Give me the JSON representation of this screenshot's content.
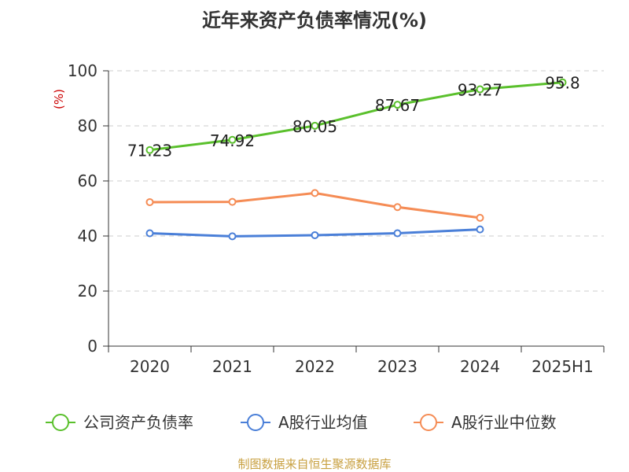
{
  "chart_data": {
    "type": "line",
    "title": "近年来资产负债率情况(%)",
    "ylabel": "(%)",
    "xlabel": "",
    "categories": [
      "2020",
      "2021",
      "2022",
      "2023",
      "2024",
      "2025H1"
    ],
    "ylim": [
      0,
      100
    ],
    "yticks": [
      0,
      20,
      40,
      60,
      80,
      100
    ],
    "grid": true,
    "legend_position": "bottom",
    "series": [
      {
        "name": "公司资产负债率",
        "color": "#5ac02c",
        "values": [
          71.23,
          74.92,
          80.05,
          87.67,
          93.27,
          95.8
        ],
        "labels": [
          "71.23",
          "74.92",
          "80.05",
          "87.67",
          "93.27",
          "95.8"
        ],
        "show_labels": true
      },
      {
        "name": "A股行业均值",
        "color": "#4a7fd8",
        "values": [
          41.0,
          39.9,
          40.3,
          41.0,
          42.4,
          null
        ],
        "show_labels": false
      },
      {
        "name": "A股行业中位数",
        "color": "#f58c55",
        "values": [
          52.3,
          52.4,
          55.6,
          50.5,
          46.6,
          null
        ],
        "show_labels": false
      }
    ]
  },
  "source": "制图数据来自恒生聚源数据库"
}
